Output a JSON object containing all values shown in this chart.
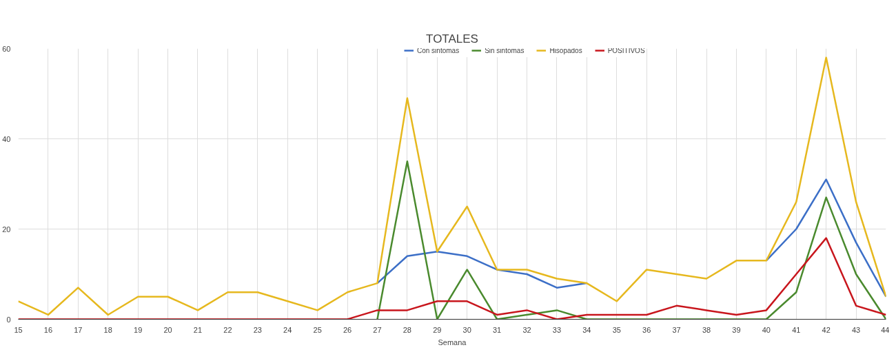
{
  "chart_data": {
    "type": "line",
    "title": "TOTALES",
    "xlabel": "Semana",
    "categories": [
      "15",
      "16",
      "17",
      "18",
      "19",
      "20",
      "21",
      "22",
      "23",
      "24",
      "25",
      "26",
      "27",
      "28",
      "29",
      "30",
      "31",
      "32",
      "33",
      "34",
      "35",
      "36",
      "37",
      "38",
      "39",
      "40",
      "41",
      "42",
      "43",
      "44"
    ],
    "series": [
      {
        "name": "Con sintomas",
        "color": "#3c6fc7",
        "values": [
          null,
          null,
          null,
          null,
          null,
          null,
          null,
          null,
          null,
          null,
          null,
          null,
          8,
          14,
          15,
          14,
          11,
          10,
          7,
          8,
          null,
          null,
          null,
          null,
          null,
          13,
          20,
          31,
          17,
          5
        ]
      },
      {
        "name": "Sin sintomas",
        "color": "#4a8a2e",
        "values": [
          null,
          null,
          null,
          null,
          null,
          null,
          null,
          null,
          null,
          null,
          null,
          null,
          0,
          35,
          0,
          11,
          0,
          1,
          2,
          0,
          0,
          0,
          0,
          0,
          0,
          0,
          6,
          27,
          10,
          0
        ]
      },
      {
        "name": "Hisopados",
        "color": "#e6b81e",
        "values": [
          4,
          1,
          7,
          1,
          5,
          5,
          2,
          6,
          6,
          4,
          2,
          6,
          8,
          49,
          15,
          25,
          11,
          11,
          9,
          8,
          4,
          11,
          10,
          9,
          13,
          13,
          26,
          58,
          26,
          5
        ]
      },
      {
        "name": "POSITIVOS",
        "color": "#c8161d",
        "values": [
          0,
          0,
          0,
          0,
          0,
          0,
          0,
          0,
          0,
          0,
          0,
          0,
          2,
          2,
          4,
          4,
          1,
          2,
          0,
          1,
          1,
          1,
          3,
          2,
          1,
          2,
          10,
          18,
          3,
          1
        ]
      }
    ],
    "ylim": [
      0,
      60
    ],
    "yticks": [
      0,
      20,
      40,
      60
    ],
    "grid": true,
    "legend": "top"
  }
}
